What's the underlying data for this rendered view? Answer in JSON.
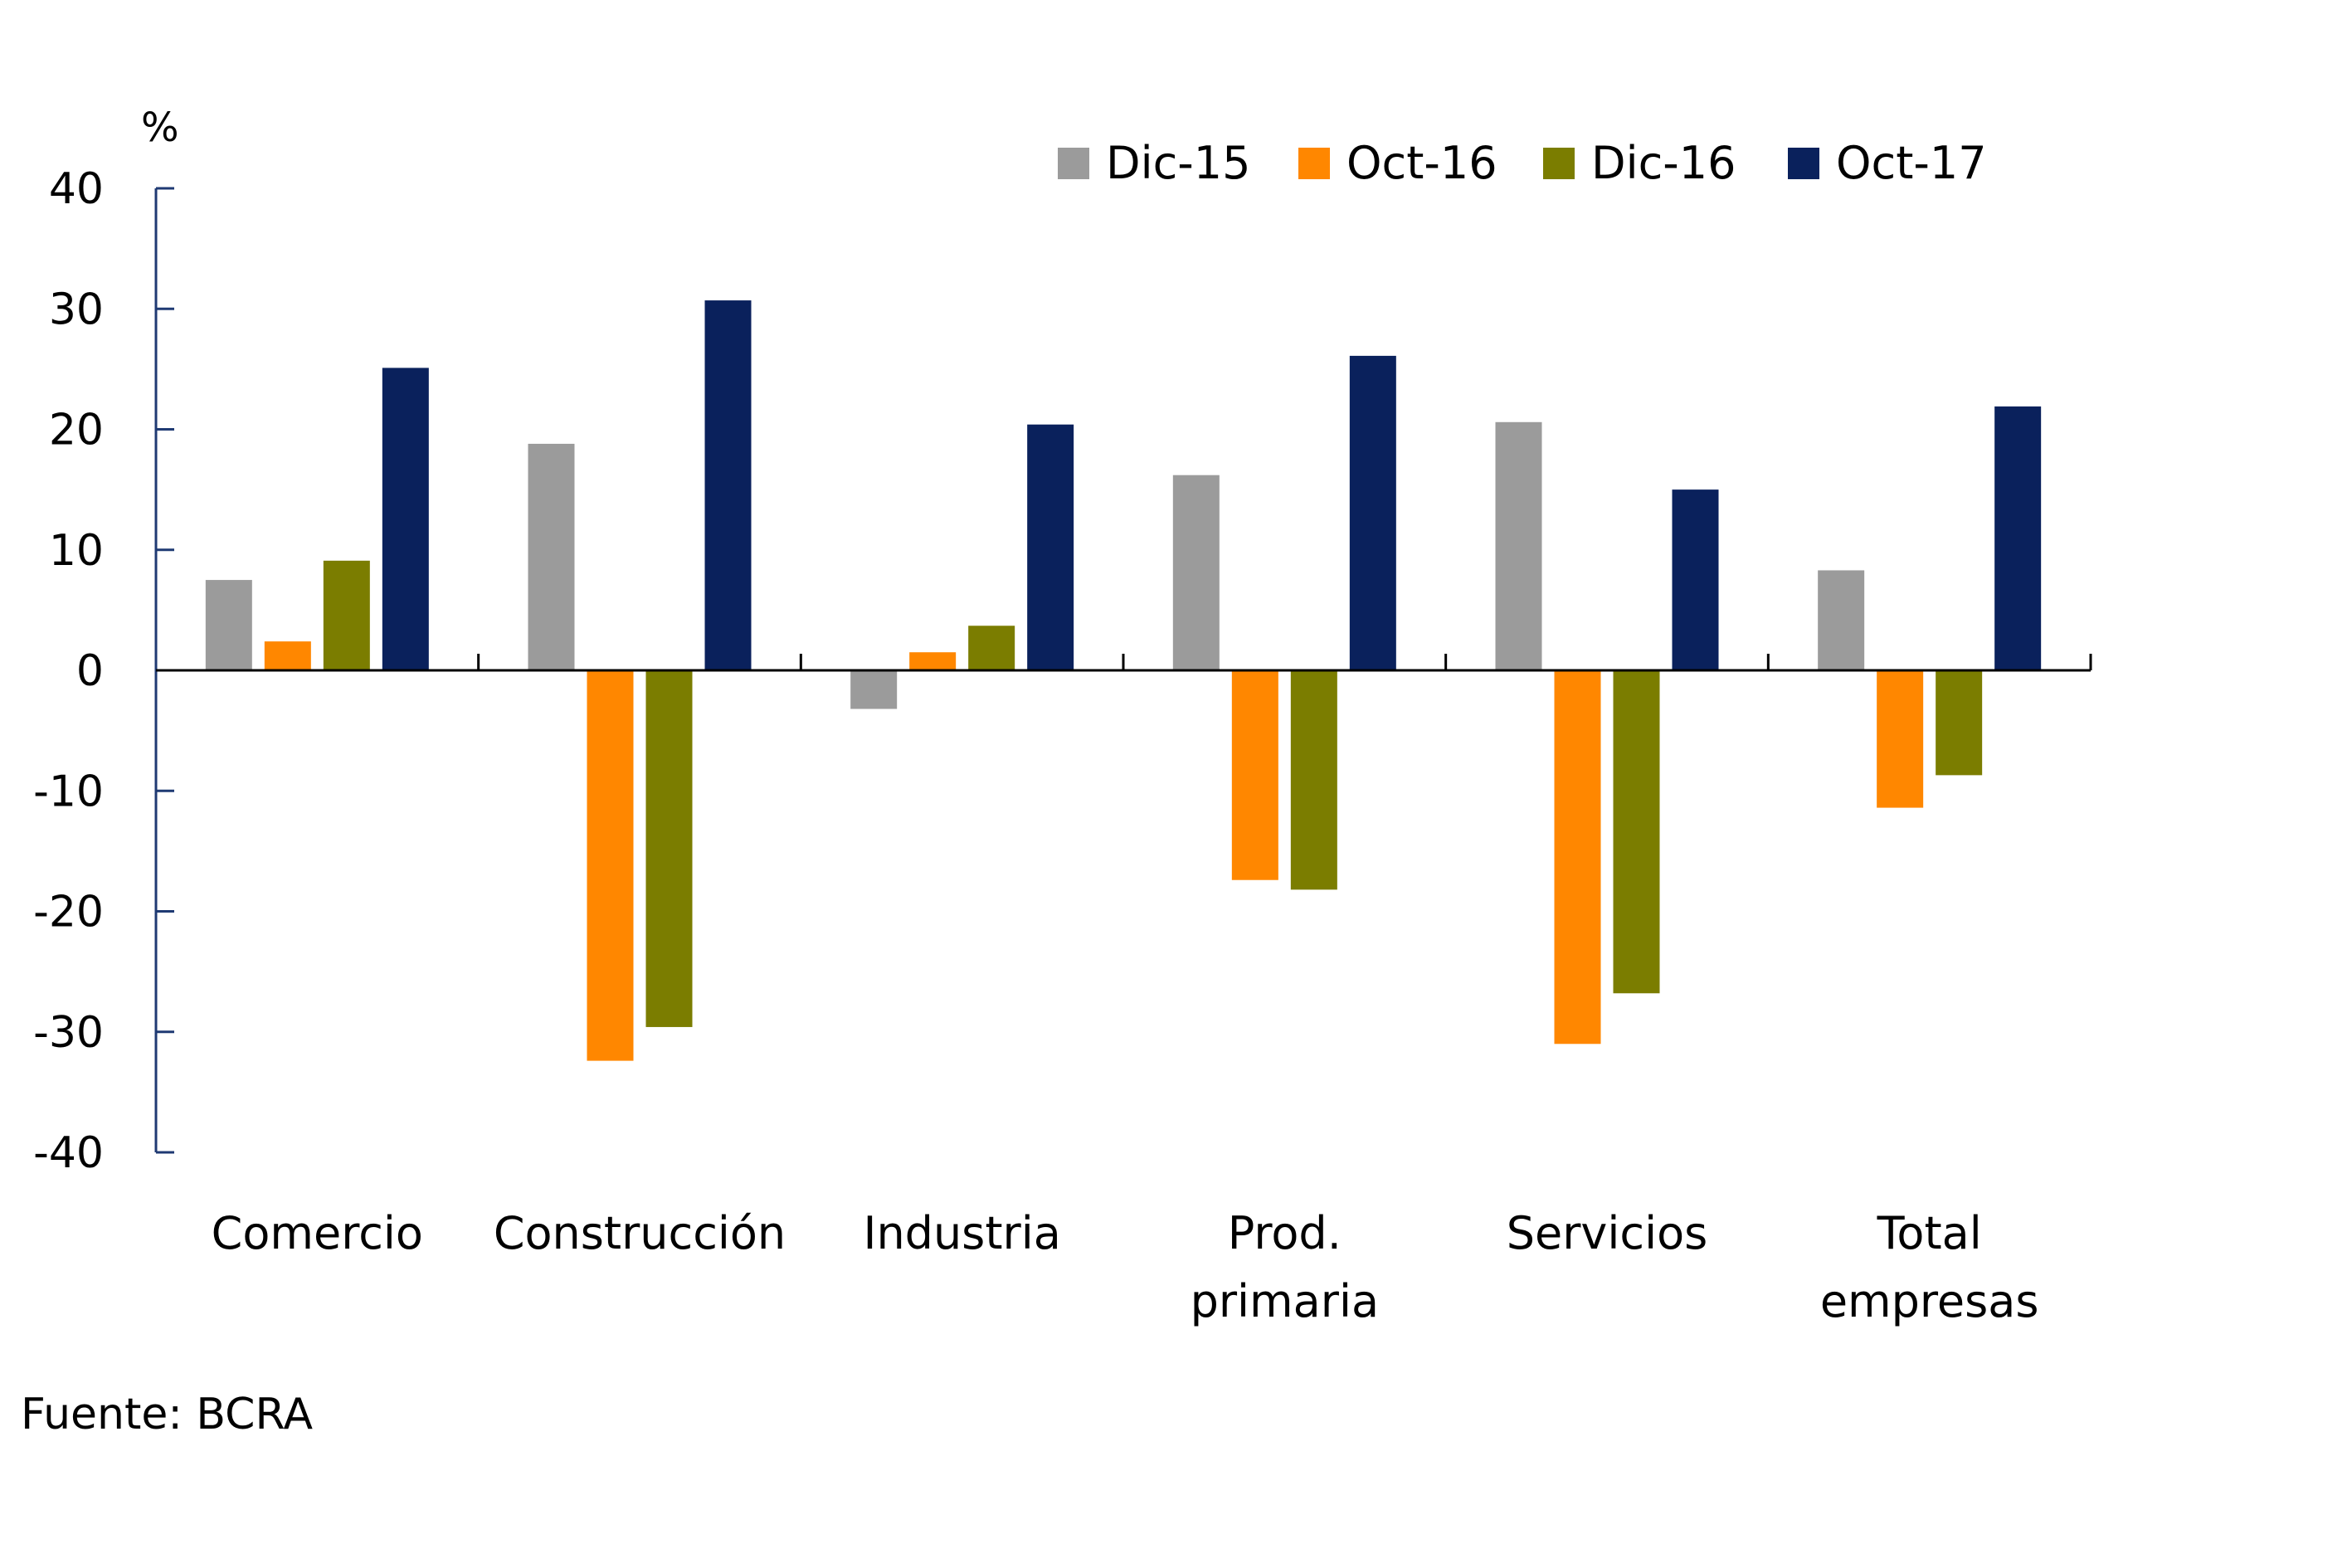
{
  "chart_data": {
    "type": "bar",
    "title": "",
    "xlabel": "",
    "ylabel": "%",
    "ylim": [
      -40,
      40
    ],
    "yticks": [
      40,
      30,
      20,
      10,
      0,
      -10,
      -20,
      -30,
      -40
    ],
    "grid": false,
    "legend_position": "top-right",
    "categories": [
      [
        "Comercio"
      ],
      [
        "Construcción"
      ],
      [
        "Industria"
      ],
      [
        "Prod.",
        "primaria"
      ],
      [
        "Servicios"
      ],
      [
        "Total",
        "empresas"
      ]
    ],
    "series": [
      {
        "name": "Dic-15",
        "color": "#9b9b9b",
        "values": [
          7.5,
          18.8,
          -3.2,
          16.2,
          20.6,
          8.3
        ]
      },
      {
        "name": "Oct-16",
        "color": "#ff8700",
        "values": [
          2.4,
          -32.4,
          1.5,
          -17.4,
          -31.0,
          -11.4
        ]
      },
      {
        "name": "Dic-16",
        "color": "#7b7d00",
        "values": [
          9.1,
          -29.6,
          3.7,
          -18.2,
          -26.8,
          -8.7
        ]
      },
      {
        "name": "Oct-17",
        "color": "#0a215c",
        "values": [
          25.1,
          30.7,
          20.4,
          26.1,
          15.0,
          21.9
        ]
      }
    ],
    "source": "Fuente: BCRA"
  },
  "colors": {
    "axis": "#1f3a73",
    "zero_line": "#000000",
    "text": "#000000"
  }
}
